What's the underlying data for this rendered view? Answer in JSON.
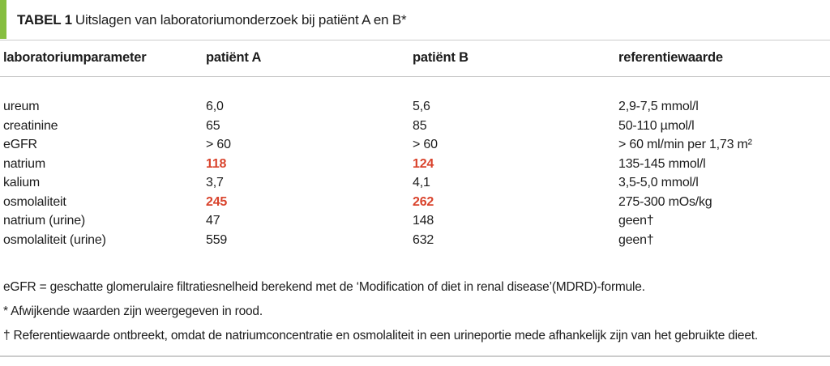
{
  "title": {
    "label": "TABEL 1",
    "text": "Uitslagen van laboratoriumonderzoek bij patiënt A en B*"
  },
  "table": {
    "headers": [
      "laboratoriumparameter",
      "patiënt A",
      "patiënt B",
      "referentiewaarde"
    ],
    "rows": [
      {
        "param": "ureum",
        "a": "6,0",
        "b": "5,6",
        "ref": "2,9-7,5 mmol/l"
      },
      {
        "param": "creatinine",
        "a": "65",
        "b": "85",
        "ref": "50-110 µmol/l"
      },
      {
        "param": "eGFR",
        "a": "> 60",
        "b": "> 60",
        "ref": "> 60 ml/min per 1,73 m²"
      },
      {
        "param": "natrium",
        "a": "118",
        "b": "124",
        "ref": "135-145 mmol/l"
      },
      {
        "param": "kalium",
        "a": "3,7",
        "b": "4,1",
        "ref": "3,5-5,0 mmol/l"
      },
      {
        "param": "osmolaliteit",
        "a": "245",
        "b": "262",
        "ref": "275-300 mOs/kg"
      },
      {
        "param": "natrium (urine)",
        "a": "47",
        "b": "148",
        "ref": "geen†"
      },
      {
        "param": "osmolaliteit (urine)",
        "a": "559",
        "b": "632",
        "ref": "geen†"
      }
    ]
  },
  "footnotes": [
    "eGFR = geschatte glomerulaire filtratiesnelheid berekend met de ‘Modification of diet in renal disease’(MDRD)-formule.",
    "* Afwijkende waarden zijn weergegeven in rood.",
    "† Referentiewaarde ontbreekt, omdat de natriumconcentratie en osmolaliteit in een urineportie mede afhankelijk zijn van het gebruikte dieet."
  ],
  "colors": {
    "accent-green": "#86be40",
    "abnormal-red": "#d9432c",
    "rule-gray": "#cccccc"
  }
}
